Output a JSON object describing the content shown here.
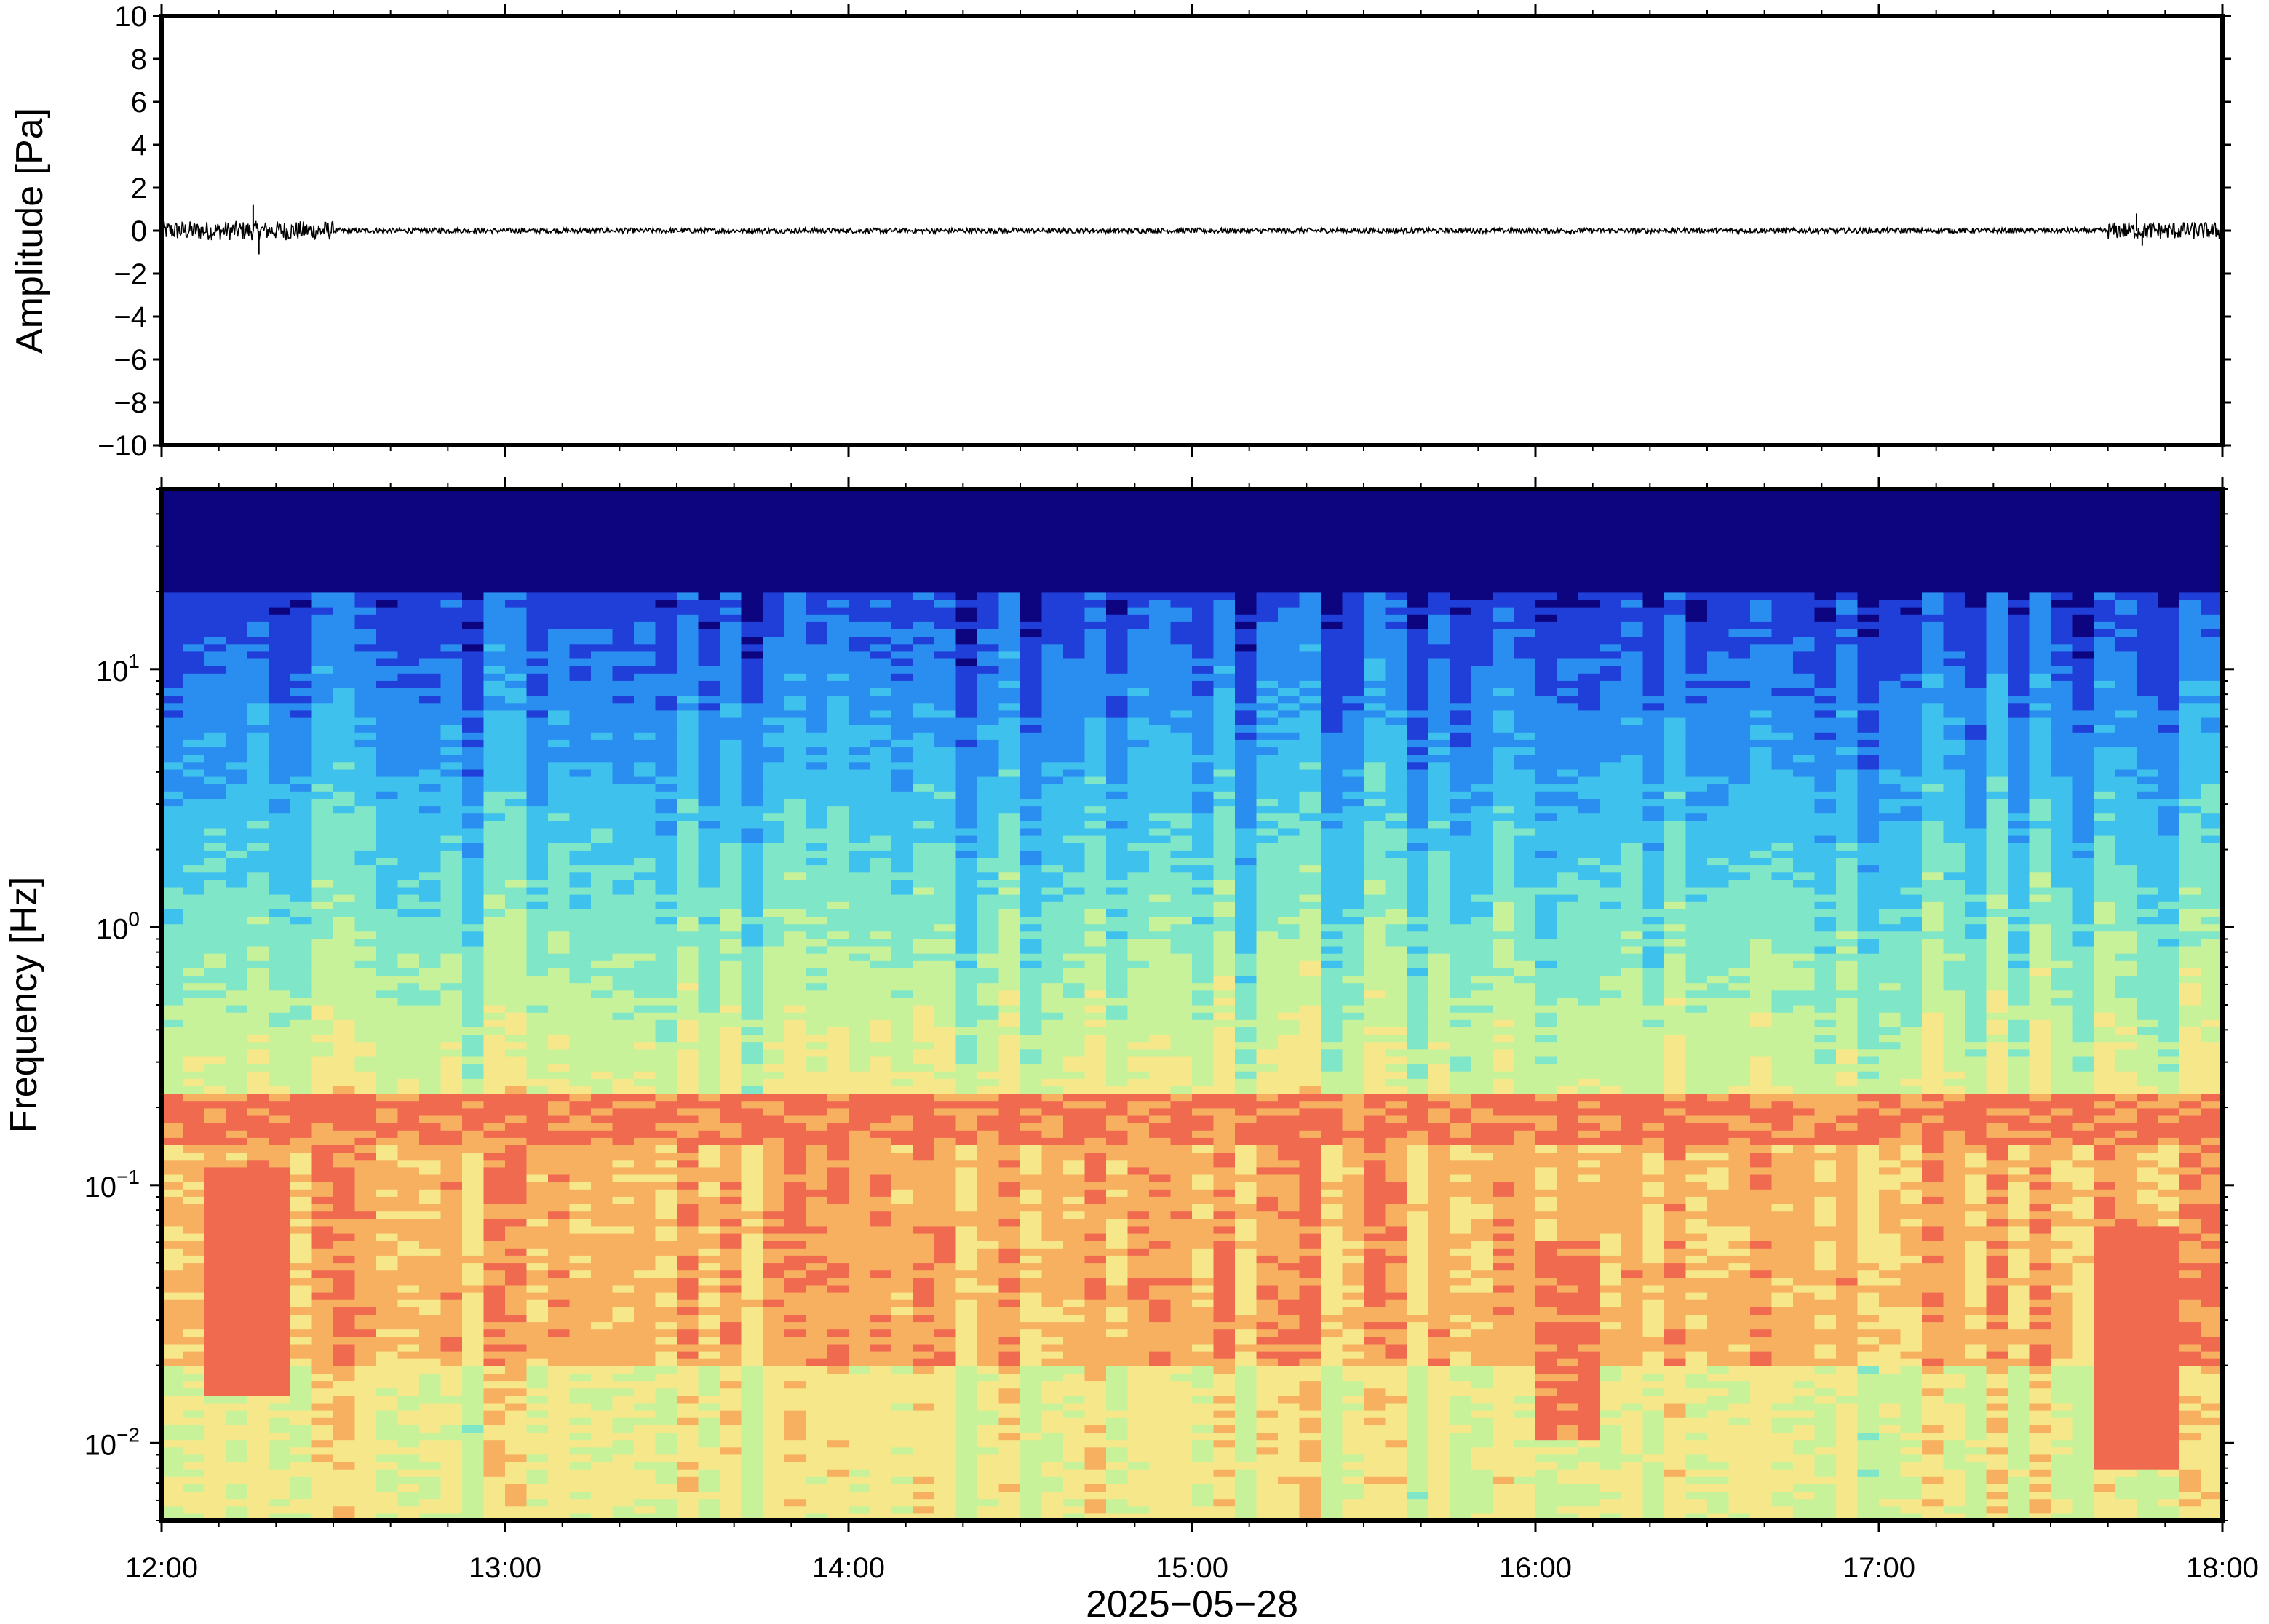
{
  "chart_data": [
    {
      "type": "line",
      "ylabel": "Amplitude [Pa]",
      "ylim": [
        -10,
        10
      ],
      "yticks": [
        10,
        8,
        6,
        4,
        2,
        0,
        -2,
        -4,
        -6,
        -8,
        -10
      ],
      "ytick_labels": [
        "10",
        "8",
        "6",
        "4",
        "2",
        "0",
        "−2",
        "−4",
        "−6",
        "−8",
        "−10"
      ],
      "xlim": [
        "12:00",
        "18:00"
      ],
      "series": [
        {
          "color": "#000000",
          "x": [
            "12:00",
            "12:15",
            "12:16",
            "12:17",
            "12:30",
            "13:00",
            "14:00",
            "14:30",
            "15:00",
            "16:00",
            "16:05",
            "16:30",
            "17:00",
            "17:30",
            "17:45",
            "17:46",
            "18:00"
          ],
          "y": [
            0.2,
            0.4,
            1.2,
            -1.1,
            0.2,
            0.1,
            0.3,
            0.1,
            0.1,
            0.1,
            0.4,
            0.1,
            0.1,
            0.1,
            0.8,
            -0.7,
            0.2
          ]
        }
      ],
      "noise_amplitude": [
        {
          "from": "12:00",
          "to": "12:30",
          "amp": 0.45
        },
        {
          "from": "12:30",
          "to": "17:40",
          "amp": 0.12
        },
        {
          "from": "17:40",
          "to": "18:00",
          "amp": 0.4
        }
      ]
    },
    {
      "type": "heatmap",
      "ylabel": "Frequency [Hz]",
      "xlabel": "2025−05−28",
      "yscale": "log",
      "ylim": [
        0.005,
        50
      ],
      "yticks": [
        0.01,
        0.1,
        1,
        10
      ],
      "ytick_labels": [
        {
          "base": "10",
          "exp": "−2"
        },
        {
          "base": "10",
          "exp": "−1"
        },
        {
          "base": "10",
          "exp": "0"
        },
        {
          "base": "10",
          "exp": "1"
        }
      ],
      "xlim": [
        "12:00",
        "18:00"
      ],
      "xticks": [
        "12:00",
        "13:00",
        "14:00",
        "15:00",
        "16:00",
        "17:00",
        "18:00"
      ],
      "colormap": [
        "#0d0480",
        "#1f3fd8",
        "#2a8ef0",
        "#3ec1ec",
        "#7fe6c8",
        "#c8f29a",
        "#f6e88a",
        "#f7b060",
        "#f06a50"
      ],
      "time_columns": [
        "12:00",
        "12:30",
        "13:00",
        "13:30",
        "14:00",
        "14:30",
        "15:00",
        "15:30",
        "16:00",
        "16:05",
        "16:30",
        "17:00",
        "17:30",
        "17:45",
        "18:00"
      ],
      "features": [
        {
          "name_shown": false,
          "kind": "band",
          "freq_hz": [
            0.14,
            0.22
          ],
          "level": 7.5
        },
        {
          "kind": "event",
          "time": "12:15",
          "freq_hz": [
            0.015,
            0.12
          ],
          "level": 8.4
        },
        {
          "kind": "event",
          "time": "16:05",
          "freq_hz": [
            0.01,
            0.06
          ],
          "level": 8.2
        },
        {
          "kind": "event",
          "time": "17:45",
          "freq_hz": [
            0.008,
            0.07
          ],
          "level": 8.6
        }
      ]
    }
  ]
}
